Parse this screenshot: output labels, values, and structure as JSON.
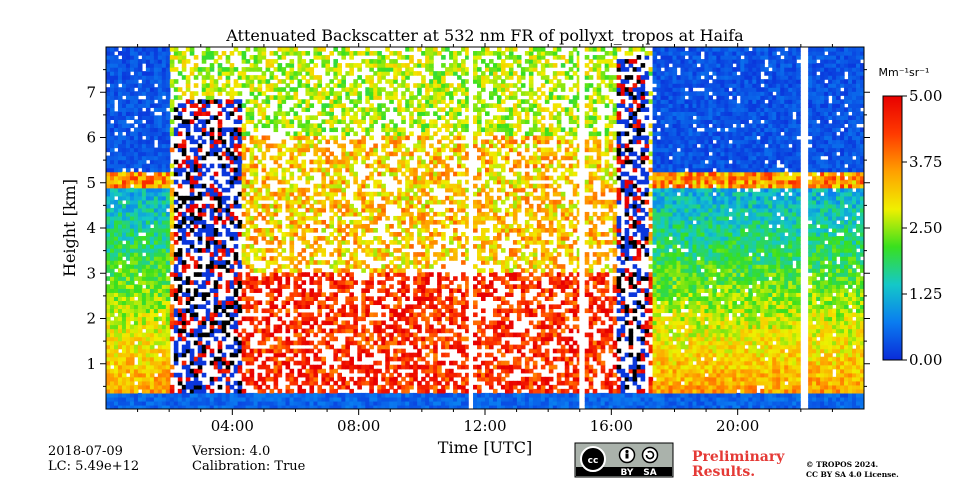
{
  "chart_data": {
    "type": "heatmap",
    "title": "Attenuated Backscatter at 532 nm FR of pollyxt_tropos at Haifa",
    "xlabel": "Time [UTC]",
    "ylabel": "Height [km]",
    "xlim_hours": [
      0,
      24
    ],
    "ylim_km": [
      0,
      8
    ],
    "x_ticks": [
      {
        "value": 4,
        "label": "04:00"
      },
      {
        "value": 8,
        "label": "08:00"
      },
      {
        "value": 12,
        "label": "12:00"
      },
      {
        "value": 16,
        "label": "16:00"
      },
      {
        "value": 20,
        "label": "20:00"
      }
    ],
    "y_ticks": [
      {
        "value": 1,
        "label": "1"
      },
      {
        "value": 2,
        "label": "2"
      },
      {
        "value": 3,
        "label": "3"
      },
      {
        "value": 4,
        "label": "4"
      },
      {
        "value": 5,
        "label": "5"
      },
      {
        "value": 6,
        "label": "6"
      },
      {
        "value": 7,
        "label": "7"
      }
    ],
    "colorbar": {
      "unit_text": "Mm⁻¹sr⁻¹",
      "range": [
        0,
        5
      ],
      "ticks": [
        {
          "value": 0,
          "label": "0.00"
        },
        {
          "value": 1.25,
          "label": "1.25"
        },
        {
          "value": 2.5,
          "label": "2.50"
        },
        {
          "value": 3.75,
          "label": "3.75"
        },
        {
          "value": 5,
          "label": "5.00"
        }
      ],
      "colors": [
        "#0a2bd9",
        "#0a7cf0",
        "#14c8c8",
        "#39e01e",
        "#f0f000",
        "#ffa000",
        "#ff3a00",
        "#e80000"
      ]
    },
    "data_gaps_hours": [
      11.55,
      15.05,
      22.1
    ],
    "cloud_layers": [
      {
        "start_hour": 2.2,
        "end_hour": 4.3,
        "top_km": 6.8
      },
      {
        "start_hour": 16.2,
        "end_hour": 17.2,
        "top_km": 7.8
      }
    ],
    "aerosol_layer_top_km": 5.2
  },
  "footer": {
    "date": "2018-07-09",
    "lc": "LC: 5.49e+12",
    "version": "Version: 4.0",
    "calibration": "Calibration: True",
    "preliminary_line1": "Preliminary",
    "preliminary_line2": "Results.",
    "copyright_line1": "© TROPOS 2024.",
    "copyright_line2": "CC BY SA 4.0 License.",
    "cc_label": "cc",
    "cc_by": "BY",
    "cc_sa": "SA"
  }
}
